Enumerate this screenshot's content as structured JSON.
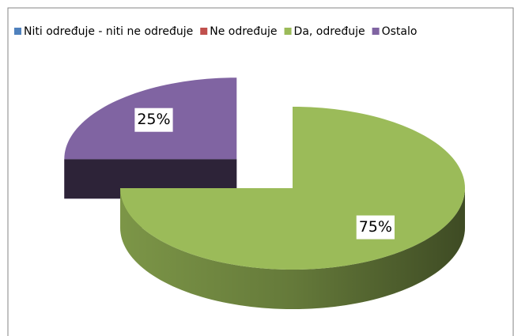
{
  "chart_data": {
    "type": "pie3d",
    "categories": [
      "Niti određuje - niti ne određuje",
      "Ne određuje",
      "Da, određuje",
      "Ostalo"
    ],
    "values": [
      0,
      0,
      75,
      25
    ],
    "value_labels": [
      null,
      null,
      "75%",
      "25%"
    ],
    "colors": [
      "#4f81bd",
      "#c0504d",
      "#9bbb59",
      "#8064a2"
    ],
    "explode": [
      false,
      false,
      false,
      true
    ],
    "legend": "top"
  }
}
